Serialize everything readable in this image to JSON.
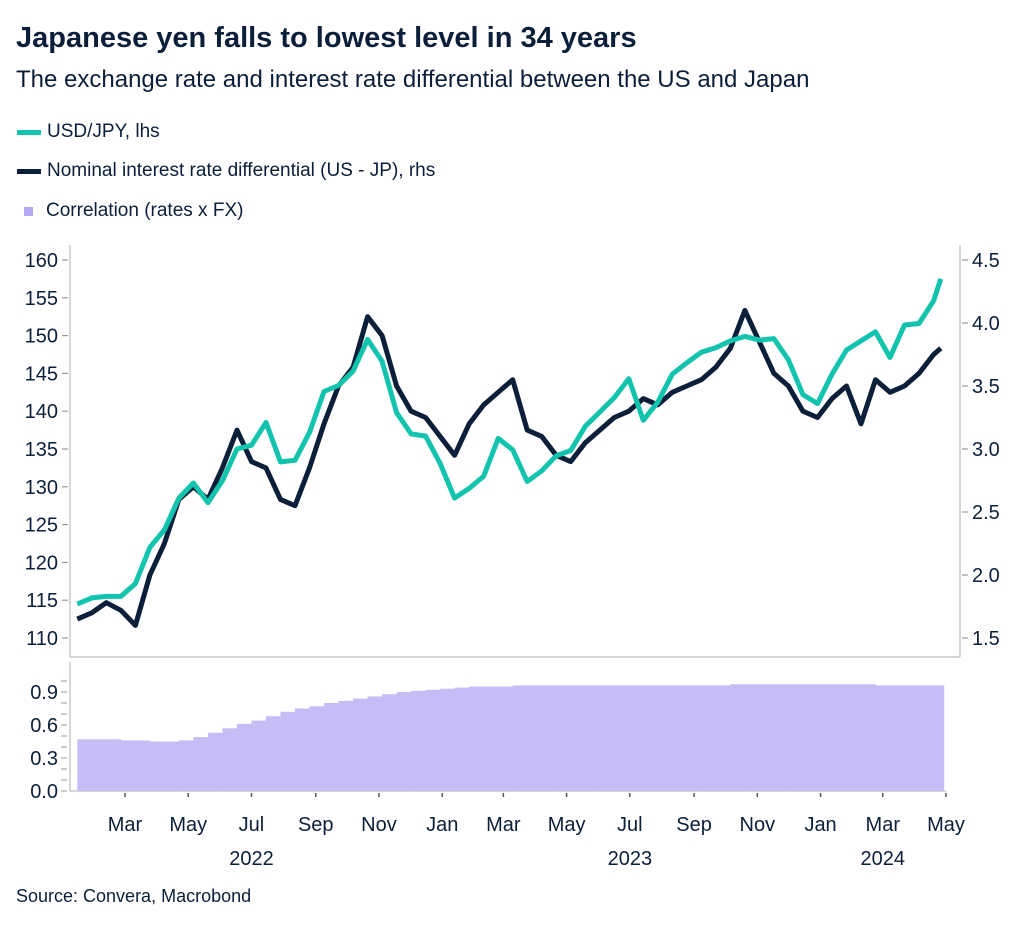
{
  "title": "Japanese yen falls to lowest level in 34 years",
  "subtitle": "The exchange rate and interest rate differential between the US and Japan",
  "source": "Source: Convera, Macrobond",
  "colors": {
    "usdjpy": "#12c4ad",
    "differential": "#0b1f3a",
    "correlation": "#c5bdf6",
    "axis": "#c8c8c8"
  },
  "legend": [
    {
      "label": "USD/JPY, lhs",
      "marker": "line"
    },
    {
      "label": "Nominal interest rate differential (US - JP), rhs",
      "marker": "line"
    },
    {
      "label": "Correlation (rates x FX)",
      "marker": "square"
    }
  ],
  "chart_data": [
    {
      "type": "line",
      "panel": "top",
      "grid": false,
      "legend_placement": "top-left",
      "left_axis": {
        "ylim": [
          110,
          160
        ],
        "ticks": [
          "160",
          "155",
          "150",
          "145",
          "140",
          "135",
          "130",
          "125",
          "120",
          "115",
          "110"
        ]
      },
      "right_axis": {
        "ylim": [
          1.5,
          4.5
        ],
        "ticks": [
          "4.5",
          "4.0",
          "3.5",
          "3.0",
          "2.5",
          "2.0",
          "1.5"
        ]
      },
      "x": [
        "2022-01-14",
        "2022-01-28",
        "2022-02-11",
        "2022-02-25",
        "2022-03-11",
        "2022-03-25",
        "2022-04-08",
        "2022-04-22",
        "2022-05-06",
        "2022-05-20",
        "2022-06-03",
        "2022-06-17",
        "2022-07-01",
        "2022-07-15",
        "2022-07-29",
        "2022-08-12",
        "2022-08-26",
        "2022-09-09",
        "2022-09-23",
        "2022-10-07",
        "2022-10-21",
        "2022-11-04",
        "2022-11-18",
        "2022-12-02",
        "2022-12-16",
        "2022-12-30",
        "2023-01-13",
        "2023-01-27",
        "2023-02-10",
        "2023-02-24",
        "2023-03-10",
        "2023-03-24",
        "2023-04-07",
        "2023-04-21",
        "2023-05-05",
        "2023-05-19",
        "2023-06-02",
        "2023-06-16",
        "2023-06-30",
        "2023-07-14",
        "2023-07-28",
        "2023-08-11",
        "2023-08-25",
        "2023-09-08",
        "2023-09-22",
        "2023-10-06",
        "2023-10-20",
        "2023-11-03",
        "2023-11-17",
        "2023-12-01",
        "2023-12-15",
        "2023-12-29",
        "2024-01-12",
        "2024-01-26",
        "2024-02-09",
        "2024-02-23",
        "2024-03-08",
        "2024-03-22",
        "2024-04-05",
        "2024-04-19",
        "2024-04-26"
      ],
      "series": [
        {
          "name": "USD/JPY, lhs",
          "axis": "left",
          "values": [
            114.5,
            115.3,
            115.5,
            115.5,
            117.2,
            122.0,
            124.3,
            128.5,
            130.5,
            127.9,
            130.8,
            135.0,
            135.5,
            138.5,
            133.3,
            133.5,
            137.2,
            142.6,
            143.4,
            145.3,
            149.5,
            146.6,
            139.8,
            137.0,
            136.7,
            133.1,
            128.5,
            129.8,
            131.4,
            136.4,
            134.9,
            130.7,
            132.1,
            134.1,
            134.8,
            138.0,
            139.9,
            141.8,
            144.3,
            138.8,
            141.2,
            144.9,
            146.4,
            147.8,
            148.4,
            149.3,
            149.9,
            149.4,
            149.6,
            146.8,
            142.2,
            141.0,
            144.9,
            148.1,
            149.3,
            150.5,
            147.1,
            151.4,
            151.6,
            154.6,
            157.5
          ]
        },
        {
          "name": "Nominal interest rate differential (US - JP), rhs",
          "axis": "right",
          "values": [
            1.65,
            1.7,
            1.78,
            1.72,
            1.6,
            2.0,
            2.25,
            2.6,
            2.7,
            2.6,
            2.85,
            3.15,
            2.9,
            2.85,
            2.6,
            2.55,
            2.85,
            3.2,
            3.5,
            3.65,
            4.05,
            3.9,
            3.5,
            3.3,
            3.25,
            3.1,
            2.95,
            3.2,
            3.35,
            3.45,
            3.55,
            3.15,
            3.1,
            2.95,
            2.9,
            3.05,
            3.15,
            3.25,
            3.3,
            3.4,
            3.35,
            3.45,
            3.5,
            3.55,
            3.65,
            3.8,
            4.1,
            3.85,
            3.6,
            3.5,
            3.3,
            3.25,
            3.4,
            3.5,
            3.2,
            3.55,
            3.45,
            3.5,
            3.6,
            3.75,
            3.8
          ]
        }
      ]
    },
    {
      "type": "bar",
      "panel": "bottom",
      "name": "Correlation (rates x FX)",
      "ylim": [
        0,
        1.1
      ],
      "y_ticks": [
        "0.9",
        "0.6",
        "0.3",
        "0.0"
      ],
      "x_ticks": [
        "Mar",
        "May",
        "Jul",
        "Sep",
        "Nov",
        "Jan",
        "Mar",
        "May",
        "Jul",
        "Sep",
        "Nov",
        "Jan",
        "Mar",
        "May"
      ],
      "x_tick_dates": [
        "2022-03-01",
        "2022-05-01",
        "2022-07-01",
        "2022-09-01",
        "2022-11-01",
        "2023-01-01",
        "2023-03-01",
        "2023-05-01",
        "2023-07-01",
        "2023-09-01",
        "2023-11-01",
        "2024-01-01",
        "2024-03-01",
        "2024-05-01"
      ],
      "years": [
        "2022",
        "2023",
        "2024"
      ],
      "values": [
        0.47,
        0.47,
        0.47,
        0.46,
        0.46,
        0.45,
        0.45,
        0.46,
        0.49,
        0.53,
        0.57,
        0.61,
        0.64,
        0.68,
        0.72,
        0.75,
        0.77,
        0.8,
        0.82,
        0.84,
        0.86,
        0.88,
        0.9,
        0.91,
        0.92,
        0.93,
        0.94,
        0.95,
        0.95,
        0.95,
        0.96,
        0.96,
        0.96,
        0.96,
        0.96,
        0.96,
        0.96,
        0.96,
        0.96,
        0.96,
        0.96,
        0.96,
        0.96,
        0.96,
        0.96,
        0.97,
        0.97,
        0.97,
        0.97,
        0.97,
        0.97,
        0.97,
        0.97,
        0.97,
        0.97,
        0.96,
        0.96,
        0.96,
        0.96,
        0.96,
        0.96
      ]
    }
  ]
}
